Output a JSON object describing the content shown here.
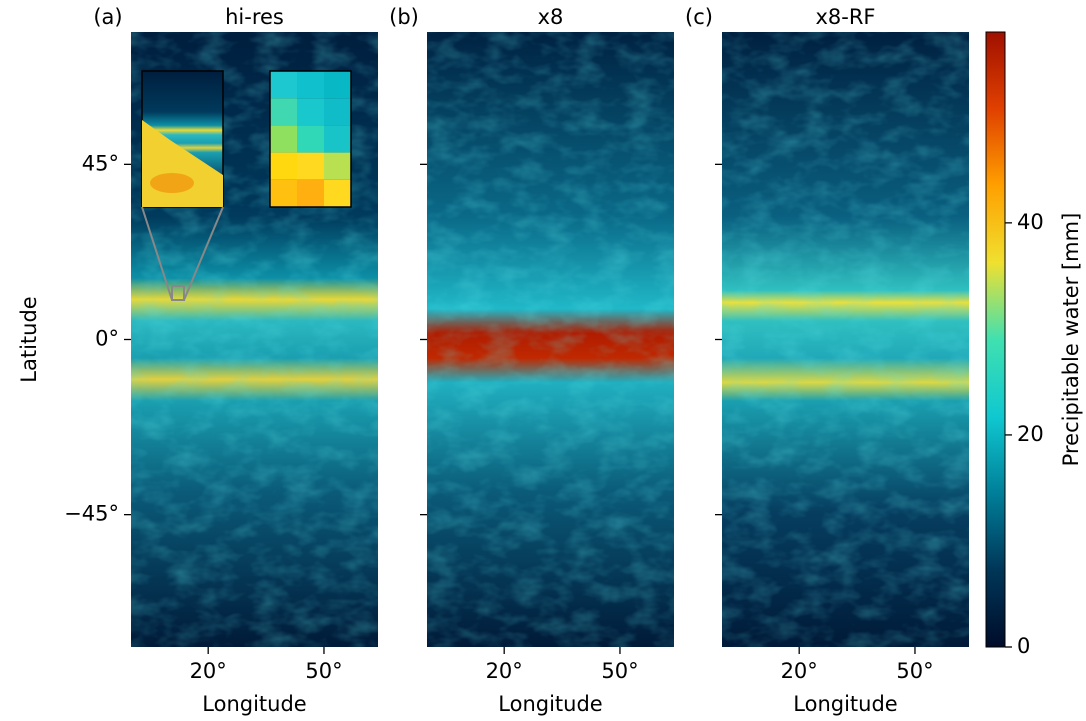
{
  "chart_data": [
    {
      "type": "heatmap",
      "panel_label": "(a)",
      "title": "hi-res",
      "xlabel": "Longitude",
      "ylabel": "Latitude",
      "xlim": [
        0,
        64
      ],
      "xticks": [
        {
          "value": 20,
          "label": "20°"
        },
        {
          "value": 50,
          "label": "50°"
        }
      ],
      "ylim": [
        -79,
        79
      ],
      "yticks": [
        {
          "value": 45,
          "label": "45°"
        },
        {
          "value": 0,
          "label": "0°"
        },
        {
          "value": -45,
          "label": "−45°"
        }
      ]
    },
    {
      "type": "heatmap",
      "panel_label": "(b)",
      "title": "x8",
      "xlabel": "Longitude",
      "xlim": [
        0,
        64
      ],
      "xticks": [
        {
          "value": 20,
          "label": "20°"
        },
        {
          "value": 50,
          "label": "50°"
        }
      ],
      "ylim": [
        -79,
        79
      ],
      "yticks": [
        45,
        0,
        -45
      ],
      "ytick_labels": false
    },
    {
      "type": "heatmap",
      "panel_label": "(c)",
      "title": "x8-RF",
      "xlabel": "Longitude",
      "xlim": [
        0,
        64
      ],
      "xticks": [
        {
          "value": 20,
          "label": "20°"
        },
        {
          "value": 50,
          "label": "50°"
        }
      ],
      "ylim": [
        -79,
        79
      ],
      "yticks": [
        45,
        0,
        -45
      ],
      "ytick_labels": false
    }
  ],
  "colorbar": {
    "label": "Precipitable water [mm]",
    "lim": [
      0,
      58
    ],
    "ticks": [
      0,
      20,
      40
    ],
    "colors": [
      "#000c2a",
      "#003658",
      "#007f99",
      "#10c8d0",
      "#40e0b0",
      "#f0e030",
      "#ffa000",
      "#e04000",
      "#a01000"
    ]
  }
}
